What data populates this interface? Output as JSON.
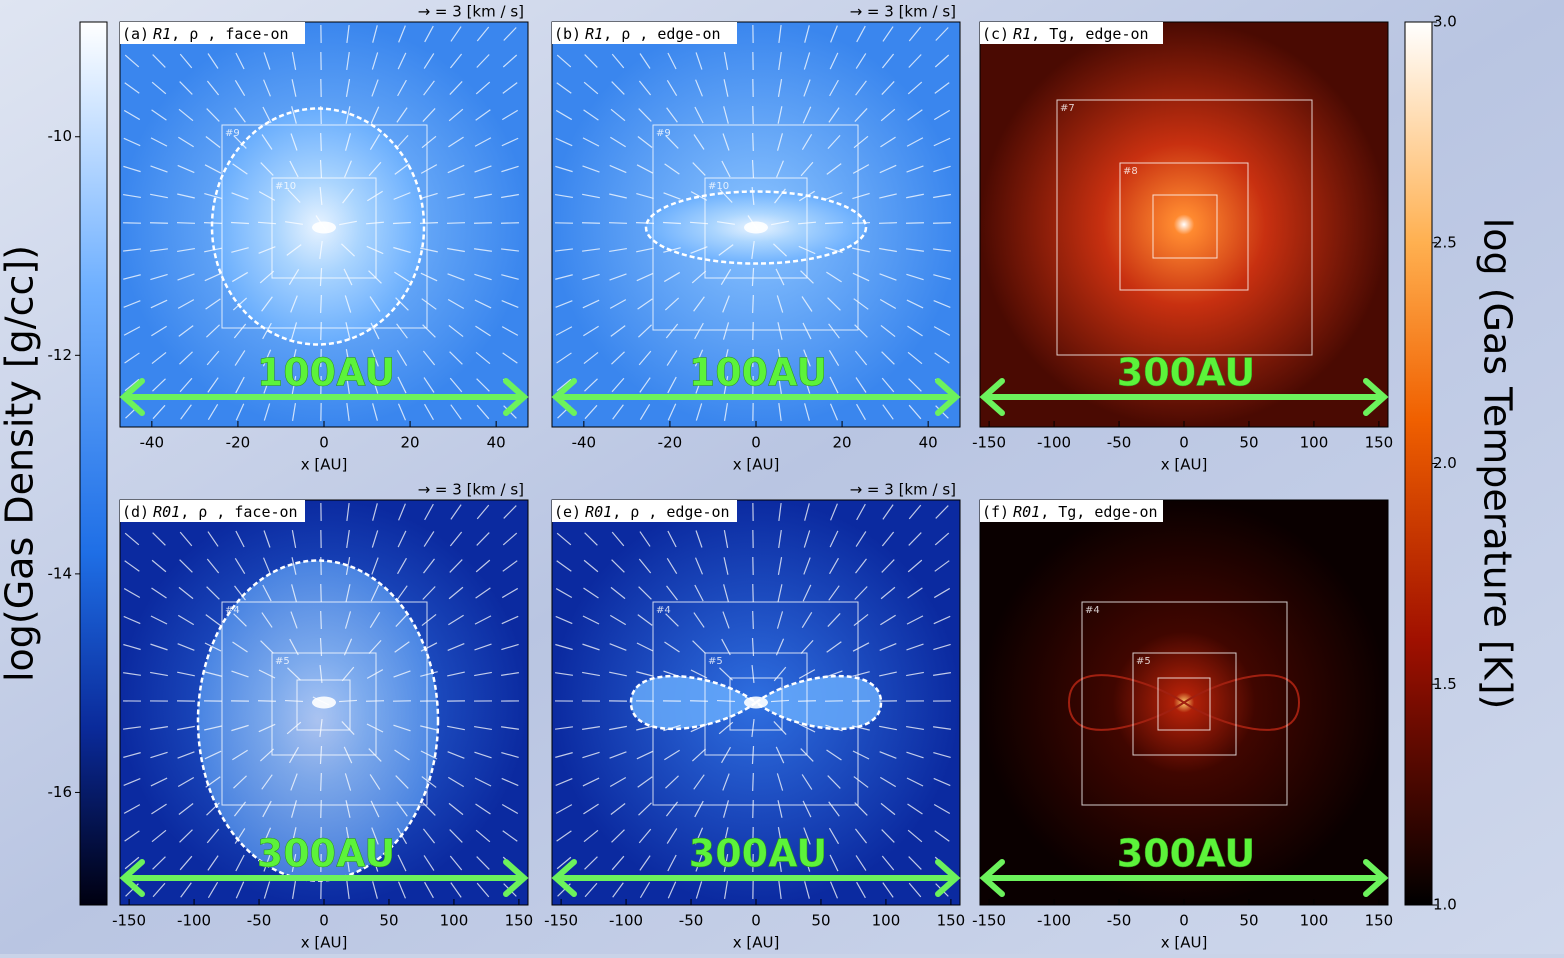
{
  "colorbars": [
    {
      "label": "log(Gas Density [g/cc])",
      "lim": [
        -17.03,
        -8.95
      ],
      "ticks": [
        -10,
        -12,
        -14,
        -16
      ]
    },
    {
      "label": "log (Gas Temperature [K])",
      "lim": [
        1.0,
        3.0
      ],
      "ticks": [
        {
          "value": 3,
          "label": "3.0"
        },
        {
          "value": 2.5,
          "label": "2.5"
        },
        {
          "value": 2,
          "label": "2.0"
        },
        {
          "value": 1.5,
          "label": "1.5"
        },
        {
          "value": 1,
          "label": "1.0"
        }
      ]
    }
  ],
  "panels": [
    {
      "id": "(a)",
      "model": "R1",
      "rest": ", ρ , face-on",
      "velocity_key": "→ = 3  [km / s]",
      "scale_label": "100AU",
      "xlabel": "x [AU]",
      "xlim": [
        -47.4,
        47.4
      ],
      "xticks": [
        -40,
        -20,
        0,
        20,
        40
      ],
      "boxes": [
        "#9",
        "#10"
      ]
    },
    {
      "id": "(b)",
      "model": "R1",
      "rest": ", ρ , edge-on",
      "velocity_key": "→ = 3  [km / s]",
      "scale_label": "100AU",
      "xlabel": "x [AU]",
      "xlim": [
        -47.4,
        47.4
      ],
      "xticks": [
        -40,
        -20,
        0,
        20,
        40
      ],
      "boxes": [
        "#9",
        "#10"
      ]
    },
    {
      "id": "(c)",
      "model": "R1",
      "rest": ", Tg, edge-on",
      "scale_label": "300AU",
      "xlabel": "x [AU]",
      "xlim": [
        -157,
        157
      ],
      "xticks": [
        -150,
        -100,
        -50,
        0,
        50,
        100,
        150
      ],
      "boxes": [
        "#7",
        "#8"
      ]
    },
    {
      "id": "(d)",
      "model": "R01",
      "rest": ", ρ , face-on",
      "velocity_key": "→ = 3  [km / s]",
      "scale_label": "300AU",
      "xlabel": "x [AU]",
      "xlim": [
        -157,
        157
      ],
      "xticks": [
        -150,
        -100,
        -50,
        0,
        50,
        100,
        150
      ],
      "boxes": [
        "#4",
        "#5"
      ]
    },
    {
      "id": "(e)",
      "model": "R01",
      "rest": ", ρ , edge-on",
      "velocity_key": "→ = 3  [km / s]",
      "scale_label": "300AU",
      "xlabel": "x [AU]",
      "xlim": [
        -157,
        157
      ],
      "xticks": [
        -150,
        -100,
        -50,
        0,
        50,
        100,
        150
      ],
      "boxes": [
        "#4",
        "#5"
      ]
    },
    {
      "id": "(f)",
      "model": "R01",
      "rest": ", Tg, edge-on",
      "scale_label": "300AU",
      "xlabel": "x [AU]",
      "xlim": [
        -157,
        157
      ],
      "xticks": [
        -150,
        -100,
        -50,
        0,
        50,
        100,
        150
      ],
      "boxes": [
        "#4",
        "#5"
      ]
    }
  ]
}
